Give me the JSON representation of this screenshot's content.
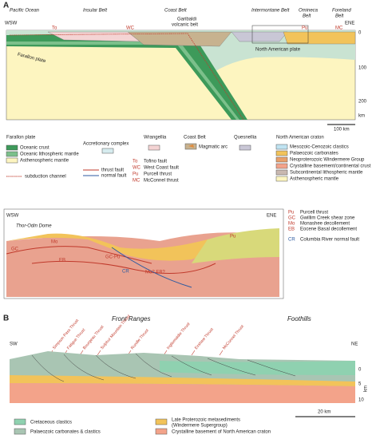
{
  "panel_a": {
    "label": "A",
    "belts": [
      "Pacific Ocean",
      "Insular Belt",
      "Coast Belt",
      "Intermontane Belt",
      "Omineca",
      "Belt",
      "Foreland",
      "Belt"
    ],
    "volcanic": [
      "Garibaldi",
      "volcanic belt"
    ],
    "left_dir": "WSW",
    "right_dir": "ENE",
    "plates": [
      "Farallon plate",
      "North American plate"
    ],
    "depth_ticks": [
      "0",
      "100",
      "200",
      "km"
    ],
    "faults": [
      "To",
      "WC",
      "Pu",
      "MC"
    ],
    "scale": "100 km"
  },
  "legend_a": {
    "farallon": {
      "title": "Farallon plate",
      "items": [
        "Oceanic crust",
        "Oceanic lithospheric mantle",
        "Asthenospheric mantle"
      ],
      "channel": "subduction channel"
    },
    "accretionary": "Accretionary complex",
    "lines": [
      "thrust fault",
      "normal fault"
    ],
    "wrangellia": "Wrangellia",
    "abbrev": [
      {
        "code": "To",
        "text": "Tofino fault"
      },
      {
        "code": "WC",
        "text": "West Coast fault"
      },
      {
        "code": "Pu",
        "text": "Purcell thrust"
      },
      {
        "code": "MC",
        "text": "McConnel thrust"
      }
    ],
    "coast_belt": {
      "title": "Coast Belt",
      "item": "Magmatic arc"
    },
    "quesnellia": "Quesnellia",
    "craton": {
      "title": "North American craton",
      "items": [
        "Mesozoic-Cenozoic clastics",
        "Palaeozoic carbonates",
        "Neoproterozoic Windermere Group",
        "Crystalline basement/continental crust",
        "Subcontinental lithospheric mantle",
        "Asthenospheric mantle"
      ]
    }
  },
  "inset": {
    "left_dir": "WSW",
    "right_dir": "ENE",
    "title": "Thor-Odin Dome",
    "labels": [
      "GC",
      "Mo",
      "EB",
      "GC-Pu",
      "CR",
      "Mo? EB?",
      "Pu"
    ],
    "legend": [
      {
        "code": "Pu",
        "text": "Purcell thrust"
      },
      {
        "code": "GC",
        "text": "Gwillim Creek shear zone"
      },
      {
        "code": "Mo",
        "text": "Monashee decollement"
      },
      {
        "code": "EB",
        "text": "Eocene Basal decollement"
      },
      {
        "code": "CR",
        "text": "Columbia River normal fault"
      }
    ]
  },
  "panel_b": {
    "label": "B",
    "regions": [
      "Front Ranges",
      "Foothills"
    ],
    "left_dir": "SW",
    "right_dir": "NE",
    "thrusts": [
      "Simpson Pass Thrust",
      "Fatigue Thrust",
      "Bourgeau Thrust",
      "Sulphur Mountain Thrust",
      "Rundle Thrust",
      "Inglismaldie Thrust",
      "Exshaw Thrust",
      "McConnel Thrust"
    ],
    "depth_ticks": [
      "0",
      "5",
      "10"
    ],
    "depth_unit": "km",
    "scale": "20 km",
    "legend": [
      "Cretaceous clastics",
      "Palaeozoic carbonates & clastics",
      "Late Proterozoic metasediments",
      "(Windermere Supergroup)",
      "Crystalline basement of North American craton"
    ]
  }
}
